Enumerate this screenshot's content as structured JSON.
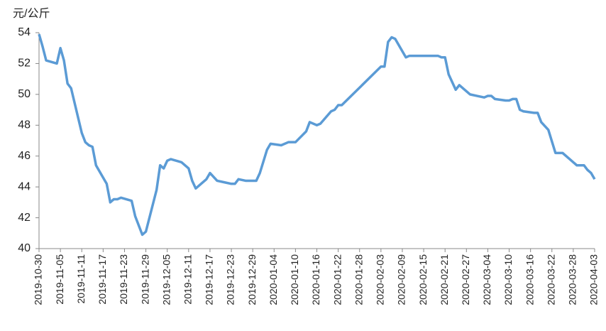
{
  "chart_data": {
    "type": "line",
    "y_label": "元/公斤",
    "x": [
      "2019-10-30",
      "2019-10-31",
      "2019-11-01",
      "2019-11-04",
      "2019-11-05",
      "2019-11-06",
      "2019-11-07",
      "2019-11-08",
      "2019-11-11",
      "2019-11-12",
      "2019-11-13",
      "2019-11-14",
      "2019-11-15",
      "2019-11-18",
      "2019-11-19",
      "2019-11-20",
      "2019-11-21",
      "2019-11-22",
      "2019-11-25",
      "2019-11-26",
      "2019-11-28",
      "2019-11-29",
      "2019-12-02",
      "2019-12-03",
      "2019-12-04",
      "2019-12-05",
      "2019-12-06",
      "2019-12-09",
      "2019-12-11",
      "2019-12-12",
      "2019-12-13",
      "2019-12-16",
      "2019-12-17",
      "2019-12-19",
      "2019-12-21",
      "2019-12-23",
      "2019-12-24",
      "2019-12-25",
      "2019-12-27",
      "2019-12-30",
      "2019-12-31",
      "2020-01-02",
      "2020-01-03",
      "2020-01-06",
      "2020-01-08",
      "2020-01-10",
      "2020-01-13",
      "2020-01-14",
      "2020-01-16",
      "2020-01-17",
      "2020-01-20",
      "2020-01-21",
      "2020-01-22",
      "2020-01-23",
      "2020-02-03",
      "2020-02-04",
      "2020-02-05",
      "2020-02-06",
      "2020-02-07",
      "2020-02-10",
      "2020-02-11",
      "2020-02-12",
      "2020-02-13",
      "2020-02-19",
      "2020-02-20",
      "2020-02-21",
      "2020-02-22",
      "2020-02-24",
      "2020-02-25",
      "2020-02-28",
      "2020-03-01",
      "2020-03-03",
      "2020-03-04",
      "2020-03-05",
      "2020-03-06",
      "2020-03-09",
      "2020-03-10",
      "2020-03-11",
      "2020-03-12",
      "2020-03-13",
      "2020-03-14",
      "2020-03-17",
      "2020-03-18",
      "2020-03-19",
      "2020-03-21",
      "2020-03-23",
      "2020-03-25",
      "2020-03-27",
      "2020-03-28",
      "2020-03-29",
      "2020-03-31",
      "2020-04-01",
      "2020-04-02",
      "2020-04-03"
    ],
    "series": [
      {
        "color": "#5b9bd5",
        "values": [
          53.9,
          53.1,
          52.2,
          52.0,
          53.0,
          52.2,
          50.7,
          50.4,
          47.5,
          46.9,
          46.7,
          46.6,
          45.4,
          44.2,
          43.0,
          43.2,
          43.2,
          43.3,
          43.1,
          42.1,
          40.9,
          41.1,
          43.8,
          45.4,
          45.2,
          45.7,
          45.8,
          45.6,
          45.2,
          44.4,
          43.9,
          44.5,
          44.9,
          44.4,
          44.3,
          44.2,
          44.2,
          44.5,
          44.4,
          44.4,
          44.9,
          46.4,
          46.8,
          46.7,
          46.9,
          46.9,
          47.6,
          48.2,
          48.0,
          48.1,
          48.9,
          49.0,
          49.3,
          49.3,
          51.8,
          51.8,
          53.4,
          53.7,
          53.6,
          52.4,
          52.5,
          52.5,
          52.5,
          52.5,
          52.4,
          52.4,
          51.3,
          50.3,
          50.6,
          50.0,
          49.9,
          49.8,
          49.9,
          49.9,
          49.7,
          49.6,
          49.6,
          49.7,
          49.7,
          49.0,
          48.9,
          48.8,
          48.8,
          48.2,
          47.7,
          46.2,
          46.2,
          45.8,
          45.6,
          45.4,
          45.4,
          45.1,
          44.9,
          44.5
        ]
      }
    ],
    "xlim": [
      "2019-10-30",
      "2020-04-03"
    ],
    "xticks": [
      "2019-10-30",
      "2019-11-05",
      "2019-11-11",
      "2019-11-17",
      "2019-11-23",
      "2019-11-29",
      "2019-12-05",
      "2019-12-11",
      "2019-12-17",
      "2019-12-23",
      "2019-12-29",
      "2020-01-04",
      "2020-01-10",
      "2020-01-16",
      "2020-01-22",
      "2020-01-28",
      "2020-02-03",
      "2020-02-09",
      "2020-02-15",
      "2020-02-21",
      "2020-02-27",
      "2020-03-04",
      "2020-03-10",
      "2020-03-16",
      "2020-03-22",
      "2020-03-28",
      "2020-04-03"
    ],
    "ylim": [
      40,
      54
    ],
    "yticks": [
      40,
      42,
      44,
      46,
      48,
      50,
      52,
      54
    ],
    "grid": false
  }
}
